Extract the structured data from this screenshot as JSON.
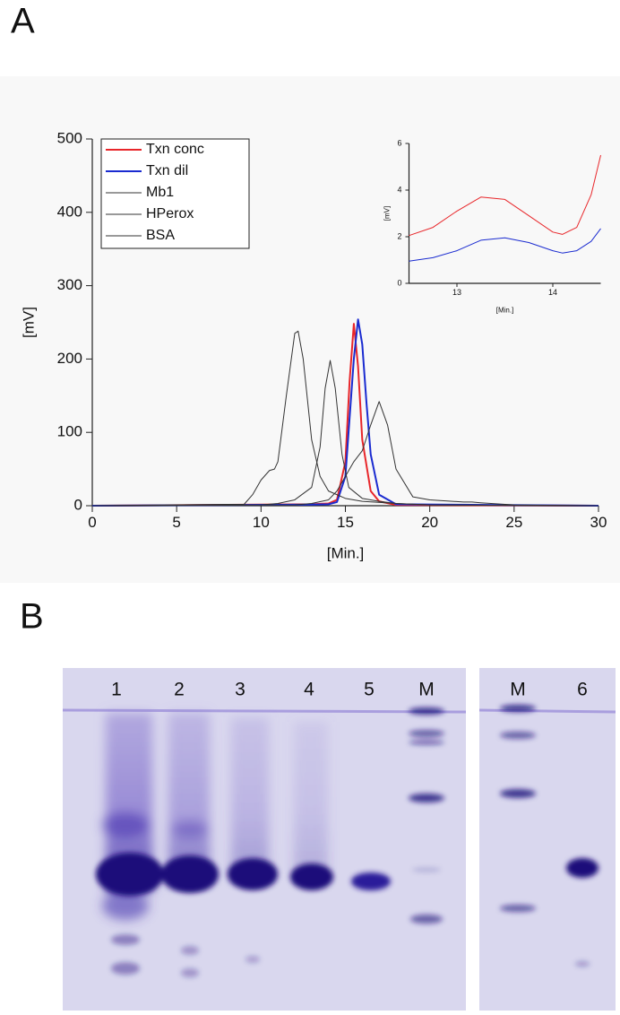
{
  "panel_labels": [
    "A",
    "B"
  ],
  "chart_data": [
    {
      "type": "line",
      "xlabel": "[Min.]",
      "ylabel": "[mV]",
      "xlim": [
        0,
        30
      ],
      "xticks": [
        0,
        5,
        10,
        15,
        20,
        25,
        30
      ],
      "ylim": [
        0,
        500
      ],
      "yticks": [
        0,
        100,
        200,
        300,
        400,
        500
      ],
      "legend": "upper left",
      "series": [
        {
          "name": "Txn conc",
          "color": "#e8262a",
          "x": [
            0,
            13,
            14,
            14.5,
            15,
            15.25,
            15.5,
            15.75,
            16,
            16.5,
            17,
            18,
            30
          ],
          "values": [
            0,
            2,
            3,
            8,
            60,
            170,
            248,
            190,
            90,
            20,
            6,
            1,
            0
          ]
        },
        {
          "name": "Txn dil",
          "color": "#1a2bd0",
          "x": [
            0,
            13,
            14,
            14.5,
            15,
            15.5,
            15.75,
            16,
            16.25,
            16.5,
            17,
            18,
            30
          ],
          "values": [
            0,
            1.5,
            2,
            5,
            40,
            200,
            254,
            220,
            140,
            70,
            15,
            2,
            0
          ]
        },
        {
          "name": "Mb1",
          "color": "#333333",
          "x": [
            0,
            12,
            13,
            14,
            14.5,
            15,
            15.5,
            16,
            16.5,
            17,
            17.5,
            18,
            19,
            20,
            22,
            22.5,
            23,
            25,
            30
          ],
          "values": [
            0,
            1,
            3,
            8,
            20,
            40,
            60,
            75,
            110,
            142,
            110,
            50,
            12,
            8,
            5,
            5,
            4,
            1,
            0
          ]
        },
        {
          "name": "HPerox",
          "color": "#333333",
          "x": [
            0,
            10,
            11,
            12,
            13,
            13.5,
            13.8,
            14.1,
            14.4,
            14.8,
            15.2,
            16,
            17,
            18,
            20,
            30
          ],
          "values": [
            0,
            1,
            3,
            8,
            25,
            80,
            160,
            198,
            160,
            70,
            25,
            10,
            6,
            3,
            1,
            0
          ]
        },
        {
          "name": "BSA",
          "color": "#333333",
          "x": [
            0,
            9,
            9.5,
            10,
            10.5,
            10.8,
            11,
            11.5,
            12,
            12.2,
            12.5,
            13,
            13.5,
            14,
            15,
            16,
            18,
            20,
            30
          ],
          "values": [
            0,
            2,
            15,
            35,
            48,
            50,
            60,
            150,
            235,
            238,
            200,
            90,
            40,
            20,
            10,
            6,
            3,
            1,
            0
          ]
        }
      ]
    },
    {
      "type": "line",
      "xlabel": "[Min.]",
      "ylabel": "[mV]",
      "xlim": [
        12.5,
        14.5
      ],
      "xticks": [
        13,
        14
      ],
      "ylim": [
        0,
        6
      ],
      "yticks": [
        0,
        2,
        4,
        6
      ],
      "series": [
        {
          "color": "#e8262a",
          "x": [
            12.5,
            12.75,
            13,
            13.25,
            13.5,
            13.75,
            14,
            14.1,
            14.25,
            14.4,
            14.5
          ],
          "values": [
            2.05,
            2.4,
            3.1,
            3.7,
            3.6,
            2.9,
            2.2,
            2.1,
            2.4,
            3.8,
            5.5
          ]
        },
        {
          "color": "#1a2bd0",
          "x": [
            12.5,
            12.75,
            13,
            13.25,
            13.5,
            13.75,
            14,
            14.1,
            14.25,
            14.4,
            14.5
          ],
          "values": [
            0.95,
            1.1,
            1.4,
            1.85,
            1.95,
            1.75,
            1.4,
            1.3,
            1.4,
            1.8,
            2.35
          ]
        }
      ]
    }
  ],
  "gel": {
    "lanes": [
      "1",
      "2",
      "3",
      "4",
      "5",
      "M"
    ],
    "lanes2": [
      "M",
      "6"
    ]
  }
}
